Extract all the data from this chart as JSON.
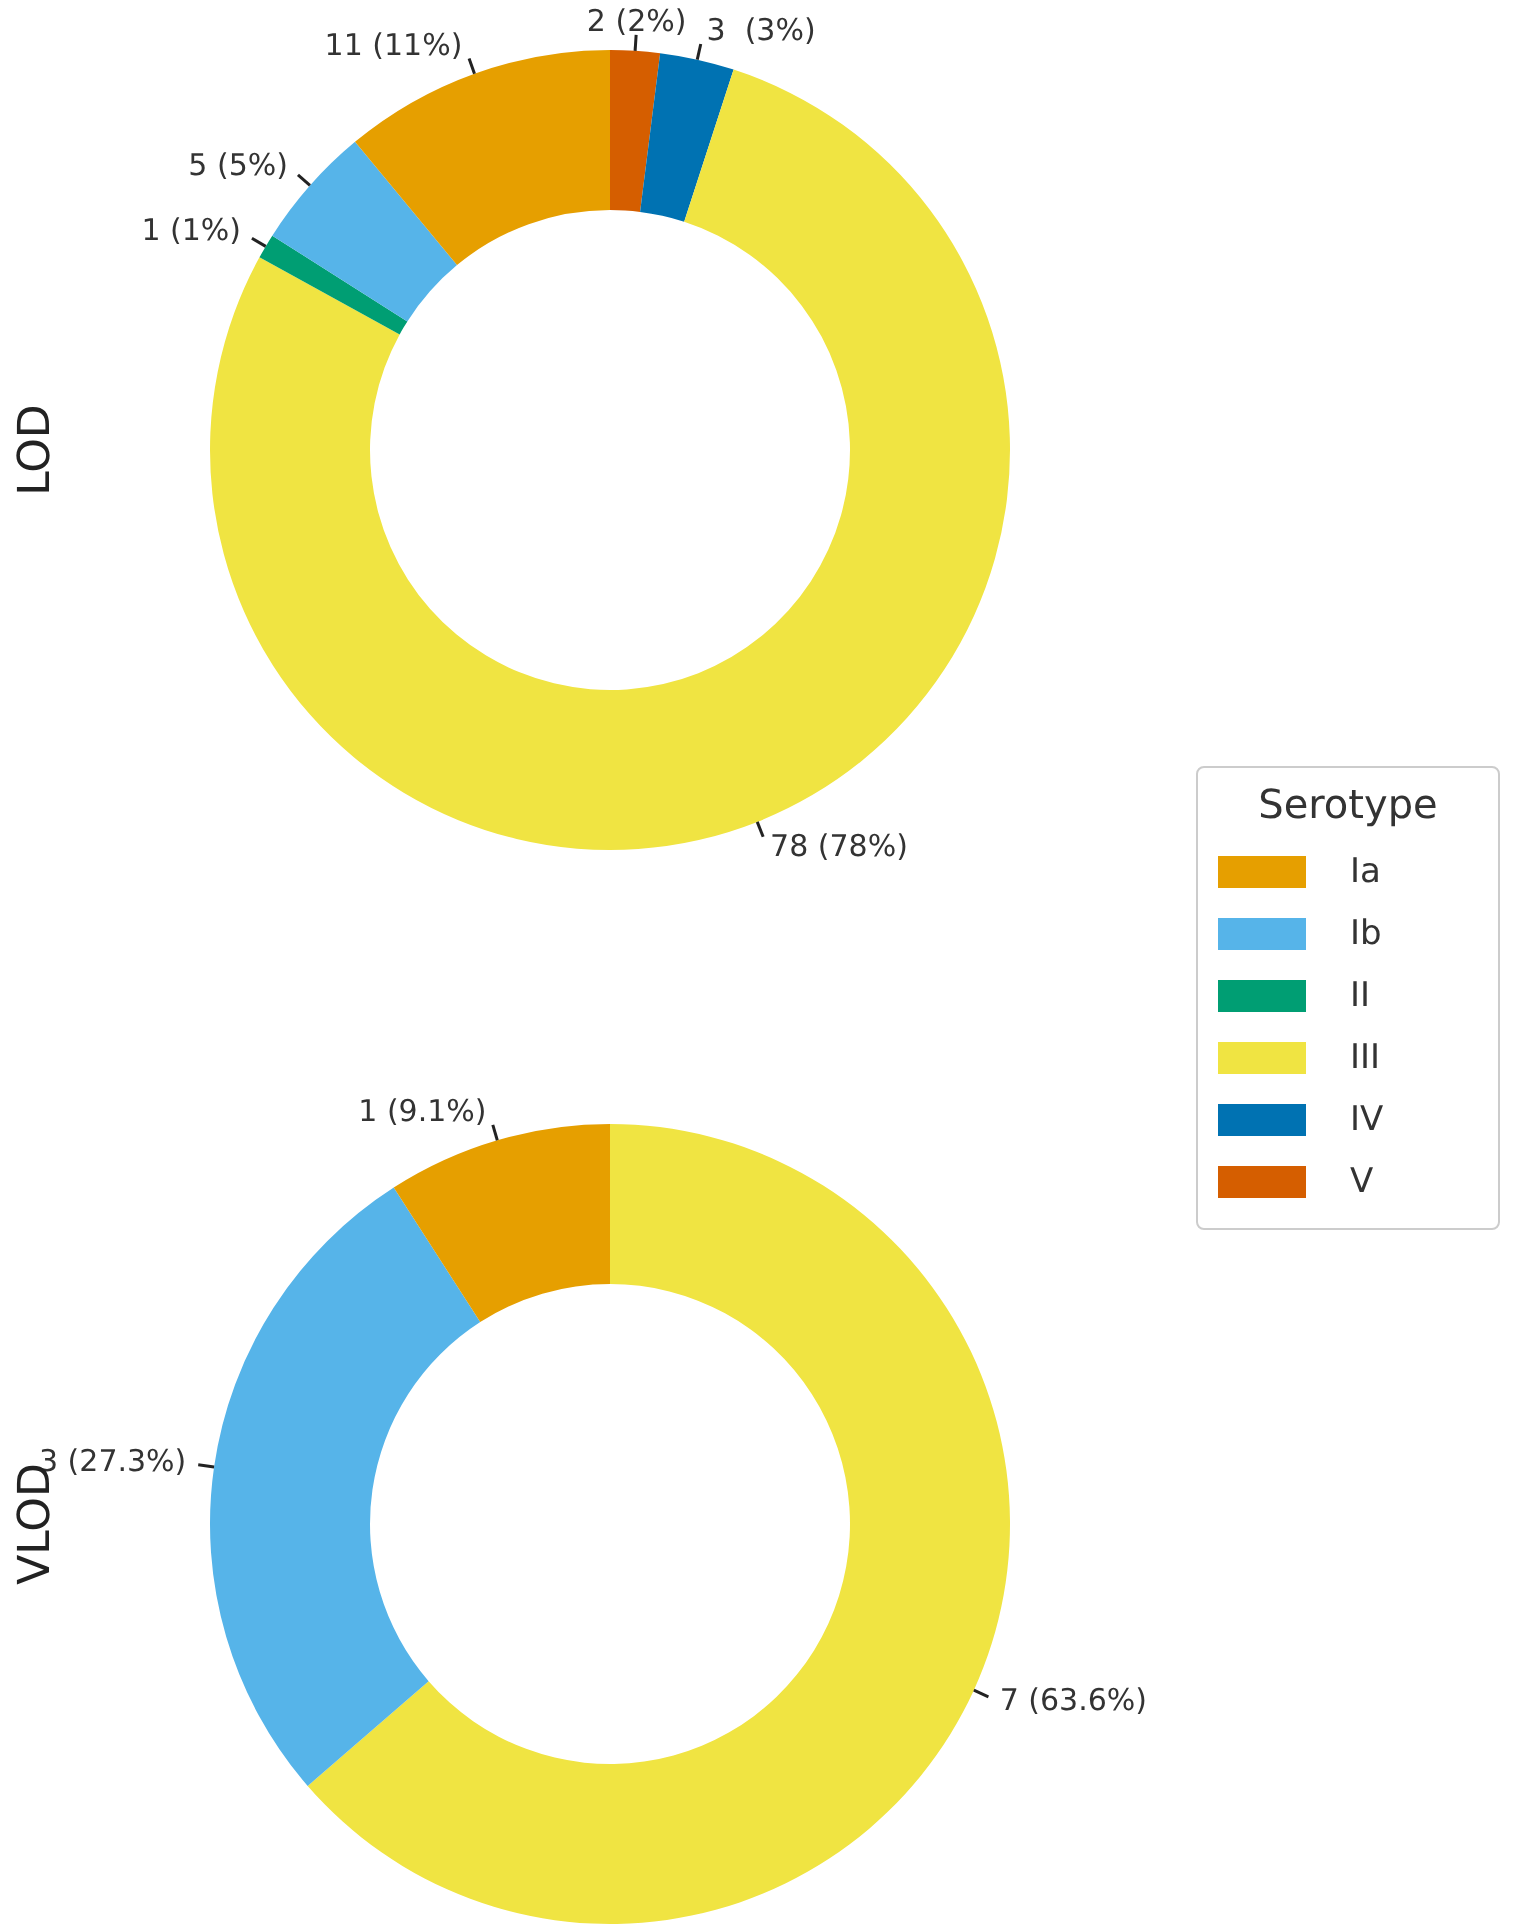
{
  "chart_data": [
    {
      "type": "donut",
      "ylabel": "LOD",
      "categories": [
        null,
        null,
        null,
        null,
        null,
        null
      ],
      "values": [
        11,
        5,
        1,
        78,
        3,
        2
      ],
      "value_labels": [
        "11 (11%)",
        "5 (5%)",
        "1 (1%)",
        "78 (78%)",
        "3  (3%)",
        "2 (2%)"
      ],
      "colors": [
        "#e69f00",
        "#56b4e9",
        "#009e73",
        "#f0e442",
        "#0072b2",
        "#d55e00"
      ]
    },
    {
      "type": "donut",
      "ylabel": "VLOD",
      "categories": [
        "Ia",
        "Ib",
        "II",
        "III",
        "IV",
        "V"
      ],
      "values": [
        1,
        3,
        0,
        7,
        0,
        0
      ],
      "value_labels": [
        "1 (9.1%)",
        "3 (27.3%)",
        null,
        "7 (63.6%)",
        null,
        null
      ],
      "colors": [
        "#e69f00",
        "#56b4e9",
        "#009e73",
        "#f0e442",
        "#0072b2",
        "#d55e00"
      ],
      "legend": "right",
      "legend_title": "Serotype"
    }
  ]
}
